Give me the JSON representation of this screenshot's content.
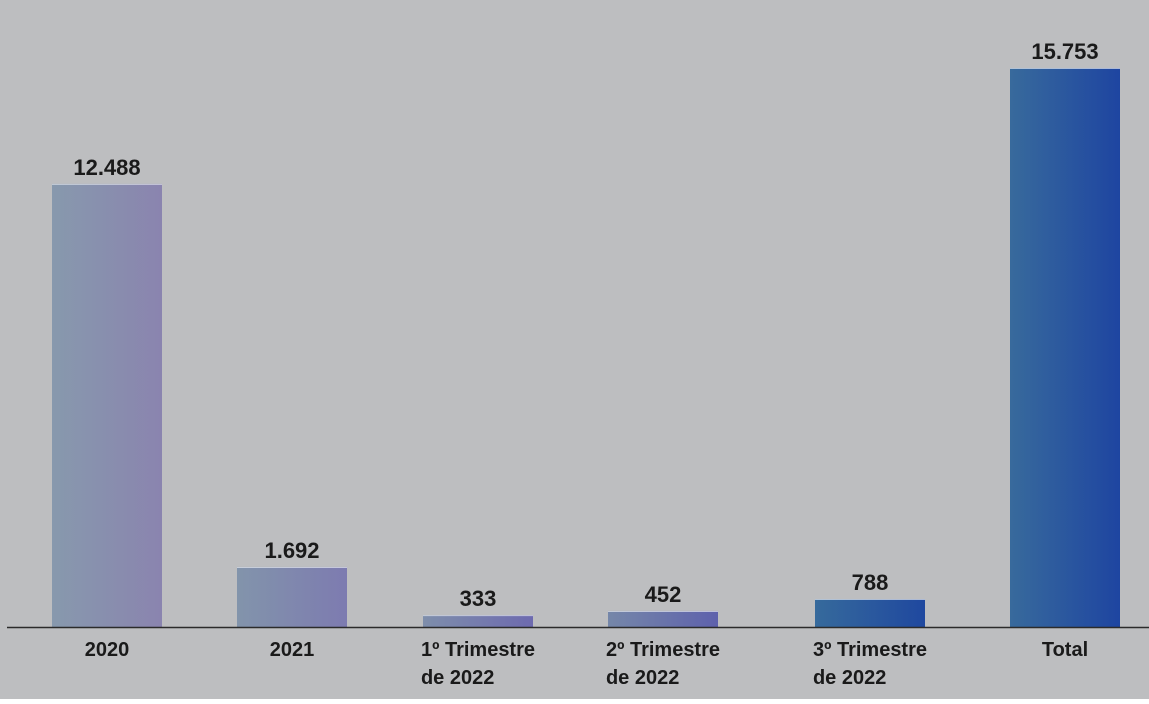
{
  "chart_data": {
    "type": "bar",
    "title": "",
    "xlabel": "",
    "ylabel": "",
    "ylim": [
      0,
      16000
    ],
    "grid": false,
    "legend": "none",
    "categories": [
      [
        "2020"
      ],
      [
        "2021"
      ],
      [
        "1º Trimestre",
        "de 2022"
      ],
      [
        "2º Trimestre",
        "de 2022"
      ],
      [
        "3º Trimestre",
        "de 2022"
      ],
      [
        "Total"
      ]
    ],
    "values": [
      12488,
      1692,
      333,
      452,
      788,
      15753
    ],
    "value_labels": [
      "12.488",
      "1.692",
      "333",
      "452",
      "788",
      "15.753"
    ]
  },
  "colors": {
    "plot_background": "#bdbec0",
    "axis_line": "#2b2b2b",
    "bar_gradients": [
      [
        "#8799ad",
        "#8a84af"
      ],
      [
        "#8294ab",
        "#7d7bb0"
      ],
      [
        "#7e8eab",
        "#6d6aaf"
      ],
      [
        "#7587a9",
        "#5e61ac"
      ],
      [
        "#366a9c",
        "#1f489f"
      ],
      [
        "#386a9c",
        "#1e45a1"
      ]
    ]
  }
}
